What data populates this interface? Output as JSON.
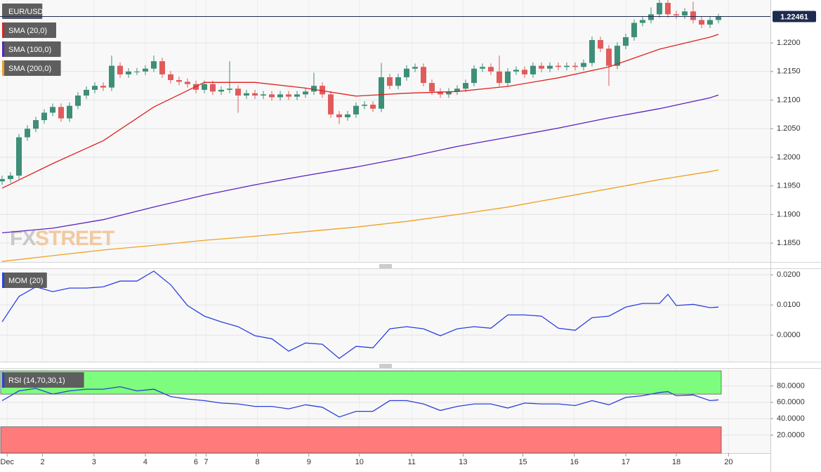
{
  "chart_data": [
    {
      "type": "candlestick",
      "title": "EUR/USD",
      "open": [
        1.1958,
        1.1962,
        1.1968,
        1.2035,
        1.205,
        1.2065,
        1.2078,
        1.2088,
        1.2068,
        1.209,
        1.2108,
        1.2118,
        1.2125,
        1.2122,
        1.216,
        1.2145,
        1.215,
        1.215,
        1.2155,
        1.2168,
        1.2145,
        1.2135,
        1.2132,
        1.2128,
        1.2118,
        1.2128,
        1.2115,
        1.2118,
        1.212,
        1.2108,
        1.2112,
        1.2108,
        1.211,
        1.2105,
        1.211,
        1.2106,
        1.211,
        1.2115,
        1.2125,
        1.211,
        1.2075,
        1.207,
        1.2075,
        1.209,
        1.2092,
        1.2085,
        1.214,
        1.2125,
        1.214,
        1.2155,
        1.2158,
        1.213,
        1.2115,
        1.211,
        1.2115,
        1.212,
        1.213,
        1.2155,
        1.2158,
        1.215,
        1.213,
        1.215,
        1.2153,
        1.2145,
        1.216,
        1.2155,
        1.216,
        1.2158,
        1.216,
        1.2158,
        1.2165,
        1.2205,
        1.219,
        1.216,
        1.2195,
        1.221,
        1.2235,
        1.224,
        1.225,
        1.227,
        1.225,
        1.2248,
        1.2255,
        1.224,
        1.2232,
        1.224
      ],
      "high": [
        1.1968,
        1.1974,
        1.2041,
        1.2056,
        1.2071,
        1.2084,
        1.2094,
        1.2094,
        1.2096,
        1.2114,
        1.2124,
        1.2131,
        1.2131,
        1.2178,
        1.2166,
        1.2156,
        1.2156,
        1.2161,
        1.2178,
        1.2174,
        1.2151,
        1.2141,
        1.2138,
        1.2134,
        1.2134,
        1.2134,
        1.2124,
        1.2168,
        1.2126,
        1.2118,
        1.2118,
        1.2116,
        1.2116,
        1.2116,
        1.2116,
        1.2116,
        1.2121,
        1.2148,
        1.2131,
        1.2116,
        1.2081,
        1.2081,
        1.2096,
        1.2098,
        1.2098,
        1.2165,
        1.2146,
        1.2146,
        1.2161,
        1.2164,
        1.2164,
        1.2136,
        1.2121,
        1.2121,
        1.2126,
        1.2136,
        1.2161,
        1.2164,
        1.2164,
        1.2178,
        1.2156,
        1.2159,
        1.2159,
        1.2166,
        1.2166,
        1.2166,
        1.2166,
        1.2166,
        1.2166,
        1.2171,
        1.2211,
        1.2211,
        1.2196,
        1.2201,
        1.2216,
        1.2241,
        1.2246,
        1.2262,
        1.2278,
        1.2276,
        1.2256,
        1.2261,
        1.2272,
        1.2246,
        1.2246,
        1.2251
      ],
      "low": [
        1.1952,
        1.1956,
        1.1962,
        1.2029,
        1.2044,
        1.2059,
        1.2072,
        1.2062,
        1.2062,
        1.2084,
        1.2102,
        1.2112,
        1.2116,
        1.2116,
        1.2139,
        1.2139,
        1.2144,
        1.2144,
        1.2149,
        1.2139,
        1.2129,
        1.2126,
        1.2122,
        1.2112,
        1.2112,
        1.2109,
        1.2109,
        1.2112,
        1.2078,
        1.2102,
        1.2102,
        1.2102,
        1.2099,
        1.2099,
        1.21,
        1.21,
        1.2104,
        1.2109,
        1.2104,
        1.2069,
        1.2058,
        1.2064,
        1.2069,
        1.2084,
        1.2079,
        1.2079,
        1.2119,
        1.2119,
        1.2134,
        1.2149,
        1.2124,
        1.2109,
        1.2104,
        1.2104,
        1.2109,
        1.2114,
        1.2124,
        1.2149,
        1.2144,
        1.2124,
        1.2124,
        1.2144,
        1.2139,
        1.2139,
        1.2149,
        1.2149,
        1.2152,
        1.2152,
        1.2152,
        1.2152,
        1.2159,
        1.2184,
        1.2125,
        1.2154,
        1.2189,
        1.2204,
        1.2229,
        1.2234,
        1.2244,
        1.2244,
        1.2242,
        1.2242,
        1.2234,
        1.2226,
        1.2226,
        1.2234
      ],
      "close": [
        1.1962,
        1.1968,
        1.2035,
        1.205,
        1.2065,
        1.2078,
        1.2088,
        1.2068,
        1.209,
        1.2108,
        1.2118,
        1.2125,
        1.2122,
        1.216,
        1.2145,
        1.215,
        1.215,
        1.2155,
        1.2168,
        1.2145,
        1.2135,
        1.2132,
        1.2128,
        1.2118,
        1.2128,
        1.2115,
        1.2118,
        1.212,
        1.2108,
        1.2112,
        1.2108,
        1.211,
        1.2105,
        1.211,
        1.2106,
        1.211,
        1.2115,
        1.2125,
        1.211,
        1.2075,
        1.207,
        1.2075,
        1.209,
        1.2092,
        1.2085,
        1.214,
        1.2125,
        1.214,
        1.2155,
        1.2158,
        1.213,
        1.2115,
        1.211,
        1.2115,
        1.212,
        1.213,
        1.2155,
        1.2158,
        1.215,
        1.213,
        1.215,
        1.2153,
        1.2145,
        1.216,
        1.2155,
        1.216,
        1.2158,
        1.216,
        1.2158,
        1.2165,
        1.2205,
        1.219,
        1.216,
        1.2195,
        1.221,
        1.2235,
        1.224,
        1.225,
        1.227,
        1.225,
        1.2248,
        1.2255,
        1.224,
        1.2232,
        1.224,
        1.22461
      ],
      "up_color": "#3e8e78",
      "down_color": "#e05b5b",
      "series": [
        {
          "name": "SMA (20,0)",
          "color": "#e0211f",
          "x": [
            0,
            6,
            12,
            18,
            24,
            30,
            36,
            42,
            48,
            54,
            60,
            66,
            72,
            78,
            84,
            85
          ],
          "values": [
            1.1946,
            1.1989,
            1.2029,
            1.2088,
            1.2131,
            1.2131,
            1.2121,
            1.2107,
            1.2112,
            1.2115,
            1.2124,
            1.2139,
            1.2158,
            1.2189,
            1.221,
            1.2215
          ]
        },
        {
          "name": "SMA (100,0)",
          "color": "#5b21c2",
          "x": [
            0,
            6,
            12,
            18,
            24,
            30,
            36,
            42,
            48,
            54,
            60,
            66,
            72,
            78,
            84,
            85
          ],
          "values": [
            1.1868,
            1.1876,
            1.1891,
            1.1913,
            1.1934,
            1.1952,
            1.1968,
            1.1983,
            1.2,
            1.2019,
            1.2035,
            1.2051,
            1.2069,
            1.2085,
            1.2104,
            1.2109
          ]
        },
        {
          "name": "SMA (200,0)",
          "color": "#f0a024",
          "x": [
            0,
            6,
            12,
            18,
            24,
            30,
            36,
            42,
            48,
            54,
            60,
            66,
            72,
            78,
            84,
            85
          ],
          "values": [
            1.1818,
            1.1828,
            1.1838,
            1.1846,
            1.1855,
            1.1862,
            1.187,
            1.1878,
            1.1888,
            1.19,
            1.1913,
            1.1929,
            1.1945,
            1.1961,
            1.1975,
            1.1978
          ]
        }
      ],
      "xlim": [
        -0.25,
        91.17
      ],
      "ylim": [
        1.1817,
        1.2275
      ],
      "yticks": [
        {
          "value": 1.22,
          "label": "1.2200"
        },
        {
          "value": 1.215,
          "label": "1.2150"
        },
        {
          "value": 1.21,
          "label": "1.2100"
        },
        {
          "value": 1.205,
          "label": "1.2050"
        },
        {
          "value": 1.2,
          "label": "1.2000"
        },
        {
          "value": 1.195,
          "label": "1.1950"
        },
        {
          "value": 1.19,
          "label": "1.1900"
        },
        {
          "value": 1.185,
          "label": "1.1850"
        }
      ],
      "grid": true,
      "last_price": 1.22461,
      "last_price_color": "#1e2b50",
      "watermark": [
        "FX",
        "STREET"
      ]
    },
    {
      "type": "line",
      "series": [
        {
          "name": "MOM (20)",
          "color": "#2b40e0",
          "x": [
            0,
            2,
            4,
            6,
            8,
            10,
            12,
            14,
            16,
            18,
            20,
            22,
            24,
            26,
            28,
            30,
            32,
            34,
            36,
            38,
            40,
            42,
            44,
            46,
            48,
            50,
            52,
            54,
            56,
            58,
            60,
            62,
            64,
            66,
            68,
            70,
            72,
            74,
            76,
            78,
            79,
            80,
            82,
            84,
            85
          ],
          "values": [
            0.0044,
            0.0128,
            0.016,
            0.0144,
            0.0156,
            0.0156,
            0.016,
            0.0179,
            0.0179,
            0.0212,
            0.0167,
            0.0098,
            0.0063,
            0.0044,
            0.0028,
            -0.0002,
            -0.0012,
            -0.0053,
            -0.0026,
            -0.003,
            -0.0077,
            -0.0037,
            -0.0042,
            0.0021,
            0.0028,
            0.0021,
            -0.0002,
            0.0021,
            0.0028,
            0.0023,
            0.0067,
            0.0067,
            0.0063,
            0.0023,
            0.0016,
            0.0058,
            0.0063,
            0.0093,
            0.0105,
            0.0105,
            0.0135,
            0.0098,
            0.0102,
            0.0091,
            0.0093
          ]
        }
      ],
      "xlim": [
        -0.25,
        91.17
      ],
      "ylim": [
        -0.0088,
        0.0219
      ],
      "yticks": [
        {
          "value": 0.02,
          "label": "0.0200"
        },
        {
          "value": 0.01,
          "label": "0.0100"
        },
        {
          "value": 0,
          "label": "0.0000"
        }
      ],
      "grid": true
    },
    {
      "type": "line",
      "series": [
        {
          "name": "RSI (14,70,30,1)",
          "color": "#2b40d8",
          "x": [
            0,
            2,
            4,
            6,
            8,
            10,
            12,
            14,
            16,
            18,
            20,
            22,
            24,
            26,
            28,
            30,
            32,
            34,
            36,
            38,
            40,
            42,
            44,
            46,
            48,
            50,
            52,
            54,
            56,
            58,
            60,
            62,
            64,
            66,
            68,
            70,
            72,
            74,
            76,
            78,
            79,
            80,
            82,
            84,
            85
          ],
          "values": [
            62,
            74,
            77,
            70,
            74,
            76,
            76,
            79,
            74,
            76,
            67,
            64,
            62,
            59,
            58,
            55,
            55,
            52,
            57,
            54,
            42,
            49,
            49,
            62,
            62,
            58,
            50,
            55,
            58,
            58,
            53,
            59,
            58,
            58,
            56,
            62,
            57,
            66,
            68,
            72,
            73,
            68,
            69,
            62,
            63
          ]
        }
      ],
      "overbought": 70,
      "oversold": 30,
      "overbought_color": "#7dfc7d",
      "oversold_color": "#ff7b7b",
      "xlim": [
        -0.25,
        91.17
      ],
      "ylim": [
        -2,
        101
      ],
      "yticks": [
        {
          "value": 80,
          "label": "80.0000"
        },
        {
          "value": 60,
          "label": "60.0000"
        },
        {
          "value": 40,
          "label": "40.0000"
        },
        {
          "value": 20,
          "label": "20.0000"
        }
      ],
      "xticks": [
        {
          "value": 0.6,
          "label": "Dec"
        },
        {
          "value": 4.8,
          "label": "2"
        },
        {
          "value": 10.9,
          "label": "3"
        },
        {
          "value": 17,
          "label": "4"
        },
        {
          "value": 23,
          "label": "6"
        },
        {
          "value": 24.2,
          "label": "7"
        },
        {
          "value": 30.3,
          "label": "8"
        },
        {
          "value": 36.4,
          "label": "9"
        },
        {
          "value": 42.4,
          "label": "10"
        },
        {
          "value": 48.6,
          "label": "11"
        },
        {
          "value": 54.7,
          "label": "13"
        },
        {
          "value": 61.8,
          "label": "15"
        },
        {
          "value": 67.9,
          "label": "16"
        },
        {
          "value": 74,
          "label": "17"
        },
        {
          "value": 80,
          "label": "18"
        },
        {
          "value": 86.2,
          "label": "20"
        }
      ],
      "grid": true
    }
  ]
}
